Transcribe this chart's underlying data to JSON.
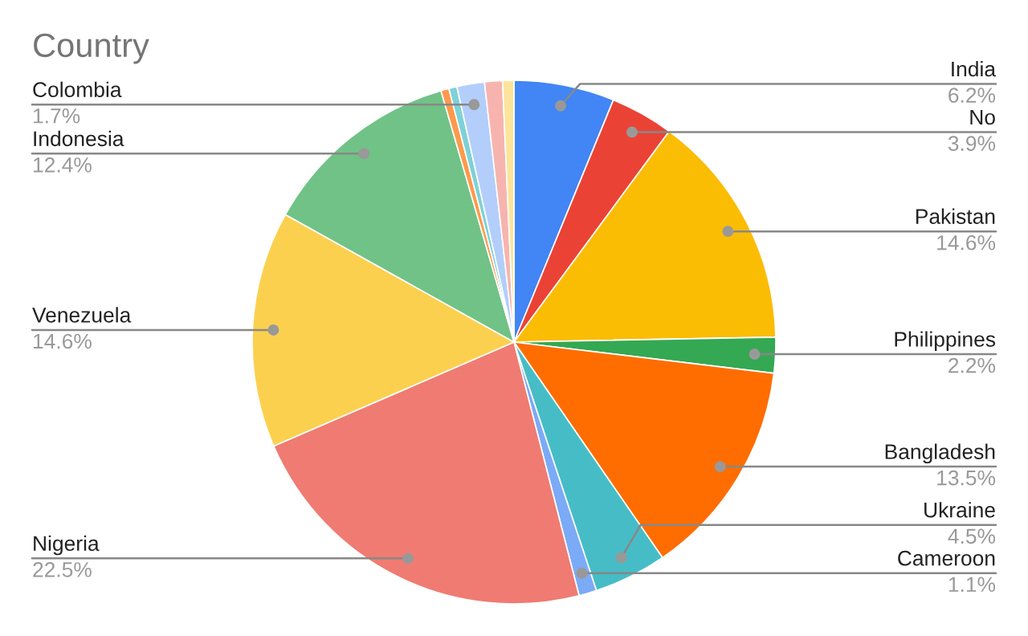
{
  "chart_data": {
    "type": "pie",
    "title": "Country",
    "legend": false,
    "categories": [
      "India",
      "No",
      "Pakistan",
      "Philippines",
      "Bangladesh",
      "Ukraine",
      "Cameroon",
      "Nigeria",
      "Venezuela",
      "Indonesia",
      null,
      null,
      "Colombia",
      null,
      null
    ],
    "values": [
      6.2,
      3.9,
      14.6,
      2.2,
      13.5,
      4.5,
      1.1,
      22.5,
      14.6,
      12.4,
      0.5,
      0.5,
      1.7,
      1.1,
      0.7
    ],
    "value_labels": [
      "6.2%",
      "3.9%",
      "14.6%",
      "2.2%",
      "13.5%",
      "4.5%",
      "1.1%",
      "22.5%",
      "14.6%",
      "12.4%",
      null,
      null,
      "1.7%",
      null,
      null
    ],
    "colors": [
      "#4285f4",
      "#ea4335",
      "#fbbc04",
      "#34a853",
      "#ff6d01",
      "#46bdc6",
      "#7baaf7",
      "#f07b72",
      "#fcd04f",
      "#71c287",
      "#ff994d",
      "#7ed1d7",
      "#b3cefb",
      "#f7b4ae",
      "#fde49b"
    ]
  }
}
